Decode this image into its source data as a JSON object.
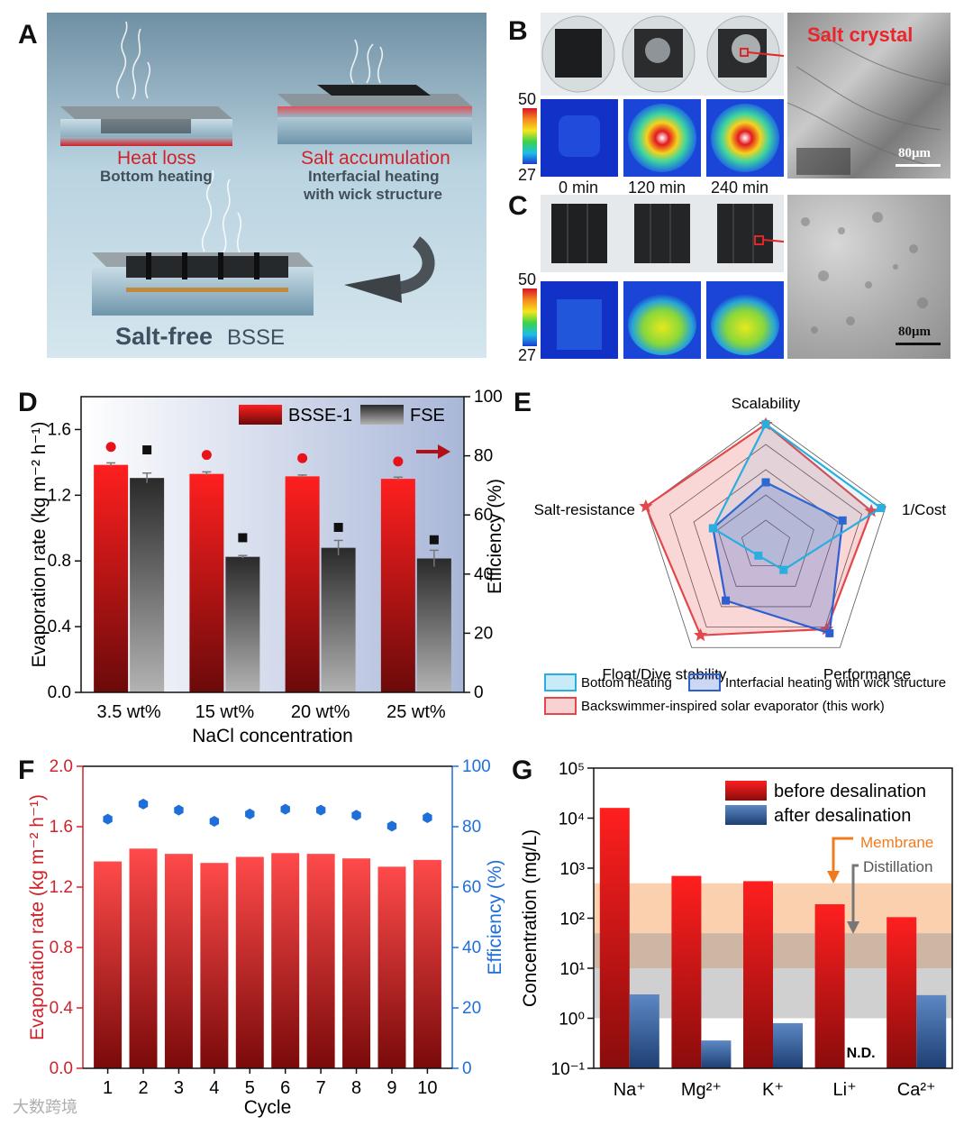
{
  "panels": {
    "A": {
      "letter": "A",
      "heat_loss": "Heat loss",
      "bottom_heating": "Bottom heating",
      "salt_accumulation": "Salt accumulation",
      "interfacial_line1": "Interfacial heating",
      "interfacial_line2": "with wick structure",
      "salt_free": "Salt-free",
      "bsse": "BSSE"
    },
    "B": {
      "letter": "B",
      "scale_top": "50",
      "scale_bottom": "27",
      "times": [
        "0 min",
        "120 min",
        "240 min"
      ],
      "salt_crystal": "Salt crystal",
      "scalebar": "80μm"
    },
    "C": {
      "letter": "C",
      "scale_top": "50",
      "scale_bottom": "27",
      "scalebar": "80μm"
    }
  },
  "chart_data": [
    {
      "id": "D",
      "type": "bar",
      "letter": "D",
      "categories": [
        "3.5 wt%",
        "15 wt%",
        "20 wt%",
        "25 wt%"
      ],
      "series": [
        {
          "name": "BSSE-1",
          "values": [
            1.385,
            1.33,
            1.315,
            1.3
          ],
          "errors": [
            0.012,
            0.012,
            0.008,
            0.01
          ]
        },
        {
          "name": "FSE",
          "values": [
            1.305,
            0.825,
            0.88,
            0.815
          ],
          "errors": [
            0.03,
            0.008,
            0.045,
            0.05
          ]
        }
      ],
      "efficiency": {
        "BSSE-1": [
          83.0,
          80.3,
          79.2,
          78.1
        ],
        "FSE": [
          82.0,
          52.3,
          55.8,
          51.6
        ]
      },
      "xlabel": "NaCl concentration",
      "ylabel": "Evaporation rate (kg m⁻² h⁻¹)",
      "y2label": "Efficiency (%)",
      "ylim": [
        0,
        1.8
      ],
      "y2lim": [
        0,
        100
      ],
      "yticks": [
        "0.0",
        "0.4",
        "0.8",
        "1.2",
        "1.6"
      ],
      "y2ticks": [
        "0",
        "20",
        "40",
        "60",
        "80",
        "100"
      ]
    },
    {
      "id": "E",
      "type": "radar",
      "letter": "E",
      "axes": [
        "Scalability",
        "1/Cost",
        "Performance",
        "Float/Dive stability",
        "Salt-resistance"
      ],
      "max": 5,
      "series": [
        {
          "name": "Bottom heating",
          "values": [
            4.8,
            4.8,
            1.2,
            0.5,
            2.2
          ],
          "color": "#29aee0"
        },
        {
          "name": "Interfacial heating with wick structure",
          "values": [
            2.5,
            3.2,
            4.3,
            2.7,
            2.2
          ],
          "color": "#2e5fd0"
        },
        {
          "name": "Backswimmer-inspired solar evaporator (this work)",
          "values": [
            4.8,
            4.4,
            4.1,
            4.4,
            5.0
          ],
          "color": "#e2474b"
        }
      ]
    },
    {
      "id": "F",
      "type": "bar",
      "letter": "F",
      "categories": [
        "1",
        "2",
        "3",
        "4",
        "5",
        "6",
        "7",
        "8",
        "9",
        "10"
      ],
      "series": [
        {
          "name": "Evaporation rate",
          "values": [
            1.37,
            1.455,
            1.42,
            1.36,
            1.4,
            1.425,
            1.42,
            1.39,
            1.335,
            1.38
          ]
        }
      ],
      "efficiency": [
        82.5,
        87.5,
        85.5,
        81.8,
        84.2,
        85.8,
        85.5,
        83.8,
        80.2,
        83.0
      ],
      "xlabel": "Cycle",
      "ylabel": "Evaporation rate (kg m⁻² h⁻¹)",
      "y2label": "Efficiency (%)",
      "ylim": [
        0,
        2.0
      ],
      "y2lim": [
        0,
        100
      ],
      "yticks": [
        "0.0",
        "0.4",
        "0.8",
        "1.2",
        "1.6",
        "2.0"
      ],
      "y2ticks": [
        "0",
        "20",
        "40",
        "60",
        "80",
        "100"
      ]
    },
    {
      "id": "G",
      "type": "bar",
      "letter": "G",
      "scale": "log",
      "categories": [
        "Na⁺",
        "Mg²⁺",
        "K⁺",
        "Li⁺",
        "Ca²⁺"
      ],
      "series": [
        {
          "name": "before desalination",
          "values": [
            16000,
            700,
            550,
            190,
            105
          ]
        },
        {
          "name": "after desalination",
          "values": [
            3.0,
            0.36,
            0.8,
            null,
            2.9
          ]
        }
      ],
      "nd_label": "N.D.",
      "ylabel": "Concentration (mg/L)",
      "ylim": [
        0.1,
        100000
      ],
      "yticks": [
        "10⁻¹",
        "10⁰",
        "10¹",
        "10²",
        "10³",
        "10⁴",
        "10⁵"
      ],
      "bands": [
        {
          "name": "Membrane",
          "range": [
            10,
            500
          ]
        },
        {
          "name": "Distillation",
          "range": [
            1,
            50
          ]
        }
      ]
    }
  ],
  "watermark": "大数跨境"
}
